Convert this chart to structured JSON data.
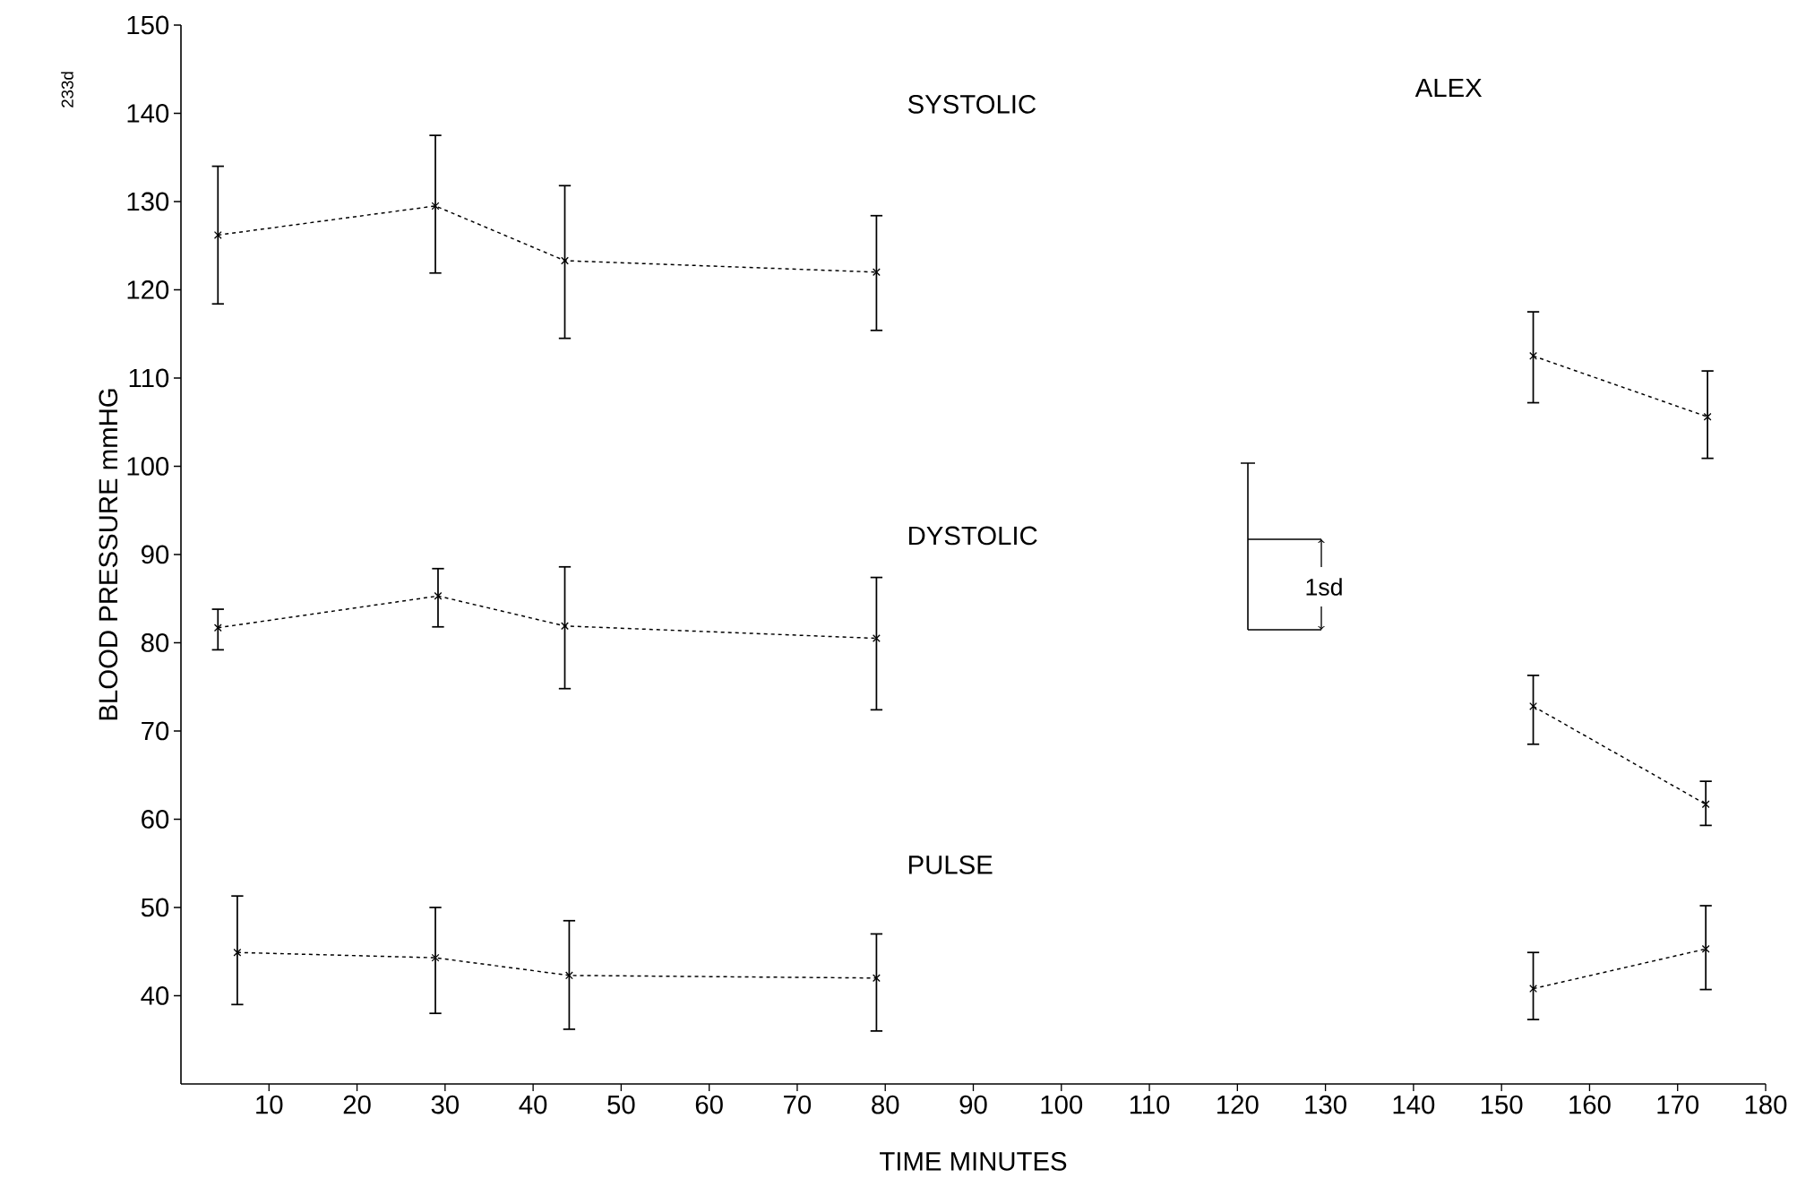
{
  "chart_data": {
    "type": "line",
    "title": "ALEX",
    "xlabel": "TIME MINUTES",
    "ylabel": "BLOOD PRESSURE mmHG",
    "xlim": [
      0,
      180
    ],
    "ylim": [
      30,
      150
    ],
    "xticks": [
      10,
      20,
      30,
      40,
      50,
      60,
      70,
      80,
      90,
      100,
      110,
      120,
      130,
      140,
      150,
      160,
      170,
      180
    ],
    "yticks": [
      40,
      50,
      60,
      70,
      80,
      90,
      100,
      110,
      120,
      130,
      140,
      150
    ],
    "marker": "cross",
    "line_style": "dashed",
    "series": [
      {
        "name": "SYSTOLIC",
        "color": "#000000",
        "x": [
          4.2,
          28.9,
          43.6,
          79
        ],
        "values": [
          126.2,
          129.5,
          123.3,
          122.0
        ],
        "errors": [
          [
            118.4,
            134.0
          ],
          [
            121.9,
            137.5
          ],
          [
            114.5,
            131.8
          ],
          [
            115.4,
            128.4
          ]
        ]
      },
      {
        "color": "#000000",
        "x": [
          153.6,
          173.4
        ],
        "values": [
          112.5,
          105.6
        ],
        "errors": [
          [
            107.2,
            117.5
          ],
          [
            100.9,
            110.8
          ]
        ]
      },
      {
        "name": "DYSTOLIC",
        "color": "#000000",
        "x": [
          4.2,
          29.2,
          43.6,
          79
        ],
        "values": [
          81.7,
          85.3,
          81.9,
          80.5
        ],
        "errors": [
          [
            79.2,
            83.8
          ],
          [
            81.8,
            88.4
          ],
          [
            74.8,
            88.6
          ],
          [
            72.4,
            87.4
          ]
        ]
      },
      {
        "color": "#000000",
        "x": [
          153.6,
          173.2
        ],
        "values": [
          72.8,
          61.7
        ],
        "errors": [
          [
            68.5,
            76.3
          ],
          [
            59.3,
            64.3
          ]
        ]
      },
      {
        "name": "PULSE",
        "color": "#000000",
        "x": [
          6.4,
          28.9,
          44.1,
          79
        ],
        "values": [
          44.9,
          44.3,
          42.3,
          42.0
        ],
        "errors": [
          [
            39.0,
            51.3
          ],
          [
            38.0,
            50.0
          ],
          [
            36.2,
            48.5
          ],
          [
            36.0,
            47.0
          ]
        ]
      },
      {
        "color": "#000000",
        "x": [
          153.6,
          173.2
        ],
        "values": [
          40.8,
          45.3
        ],
        "errors": [
          [
            37.3,
            44.9
          ],
          [
            40.7,
            50.2
          ]
        ]
      }
    ],
    "annotations": [
      "233d",
      "1sd"
    ]
  }
}
